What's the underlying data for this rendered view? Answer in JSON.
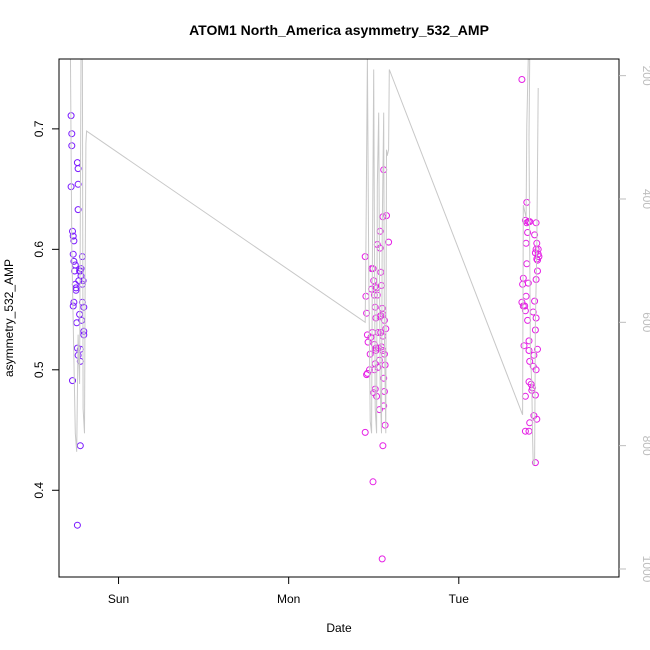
{
  "chart_data": {
    "type": "scatter",
    "title": "ATOM1 North_America asymmetry_532_AMP",
    "xlabel": "Date",
    "ylabel": "asymmetry_532_AMP",
    "x_ticks": [
      {
        "label": "Sun",
        "value": 24
      },
      {
        "label": "Mon",
        "value": 48
      },
      {
        "label": "Tue",
        "value": 72
      }
    ],
    "xlim": [
      15.6,
      94.6
    ],
    "ylim": [
      0.328,
      0.758
    ],
    "y_ticks": [
      0.4,
      0.5,
      0.6,
      0.7
    ],
    "y2_ticks": [
      200,
      400,
      600,
      800,
      1000
    ],
    "y2lim": [
      1013,
      173
    ],
    "grid": false,
    "colors": {
      "points_early": "#7a19ff",
      "points_late": "#e51fe5",
      "line": "#c8c8c8",
      "right_axis": "#bdbdbd"
    },
    "series": [
      {
        "name": "",
        "kind": "points",
        "points": [
          [
            17.3,
            0.711
          ],
          [
            17.4,
            0.696
          ],
          [
            17.4,
            0.686
          ],
          [
            17.3,
            0.652
          ],
          [
            17.5,
            0.615
          ],
          [
            17.6,
            0.611
          ],
          [
            17.7,
            0.607
          ],
          [
            17.6,
            0.596
          ],
          [
            17.7,
            0.59
          ],
          [
            17.9,
            0.587
          ],
          [
            17.8,
            0.582
          ],
          [
            17.9,
            0.571
          ],
          [
            18.0,
            0.568
          ],
          [
            18.0,
            0.566
          ],
          [
            17.7,
            0.556
          ],
          [
            17.6,
            0.553
          ],
          [
            17.5,
            0.491
          ],
          [
            18.2,
            0.672
          ],
          [
            18.3,
            0.667
          ],
          [
            18.3,
            0.654
          ],
          [
            18.3,
            0.633
          ],
          [
            18.9,
            0.594
          ],
          [
            18.6,
            0.582
          ],
          [
            18.7,
            0.584
          ],
          [
            18.5,
            0.582
          ],
          [
            18.4,
            0.574
          ],
          [
            18.7,
            0.578
          ],
          [
            18.9,
            0.571
          ],
          [
            19.0,
            0.574
          ],
          [
            18.9,
            0.556
          ],
          [
            19.1,
            0.552
          ],
          [
            18.5,
            0.546
          ],
          [
            18.8,
            0.541
          ],
          [
            18.1,
            0.539
          ],
          [
            19.1,
            0.532
          ],
          [
            19.1,
            0.529
          ],
          [
            18.2,
            0.518
          ],
          [
            18.6,
            0.517
          ],
          [
            18.3,
            0.512
          ],
          [
            18.6,
            0.507
          ],
          [
            18.6,
            0.437
          ],
          [
            18.2,
            0.371
          ],
          [
            58.8,
            0.594
          ],
          [
            58.9,
            0.561
          ],
          [
            59.0,
            0.547
          ],
          [
            59.1,
            0.529
          ],
          [
            59.2,
            0.523
          ],
          [
            59.0,
            0.496
          ],
          [
            59.1,
            0.497
          ],
          [
            58.8,
            0.448
          ],
          [
            59.7,
            0.584
          ],
          [
            59.9,
            0.584
          ],
          [
            60.0,
            0.574
          ],
          [
            60.2,
            0.569
          ],
          [
            60.4,
            0.568
          ],
          [
            59.7,
            0.567
          ],
          [
            60.1,
            0.562
          ],
          [
            60.5,
            0.562
          ],
          [
            60.2,
            0.552
          ],
          [
            60.3,
            0.543
          ],
          [
            59.6,
            0.527
          ],
          [
            59.8,
            0.531
          ],
          [
            60.1,
            0.521
          ],
          [
            60.3,
            0.518
          ],
          [
            60.3,
            0.516
          ],
          [
            59.5,
            0.513
          ],
          [
            60.2,
            0.505
          ],
          [
            60.1,
            0.5
          ],
          [
            59.4,
            0.5
          ],
          [
            60.6,
            0.502
          ],
          [
            60.2,
            0.484
          ],
          [
            60.0,
            0.481
          ],
          [
            60.4,
            0.478
          ],
          [
            60.8,
            0.467
          ],
          [
            59.9,
            0.407
          ],
          [
            60.5,
            0.604
          ],
          [
            60.9,
            0.601
          ],
          [
            60.9,
            0.615
          ],
          [
            61.3,
            0.627
          ],
          [
            61.4,
            0.666
          ],
          [
            61.8,
            0.628
          ],
          [
            62.1,
            0.606
          ],
          [
            61.0,
            0.581
          ],
          [
            61.1,
            0.57
          ],
          [
            61.2,
            0.551
          ],
          [
            61.5,
            0.541
          ],
          [
            61.7,
            0.534
          ],
          [
            61.3,
            0.546
          ],
          [
            61.0,
            0.545
          ],
          [
            60.6,
            0.531
          ],
          [
            60.9,
            0.544
          ],
          [
            61.0,
            0.531
          ],
          [
            61.1,
            0.519
          ],
          [
            61.3,
            0.516
          ],
          [
            60.7,
            0.518
          ],
          [
            61.3,
            0.528
          ],
          [
            61.5,
            0.513
          ],
          [
            61.6,
            0.504
          ],
          [
            60.8,
            0.508
          ],
          [
            61.4,
            0.493
          ],
          [
            61.5,
            0.482
          ],
          [
            61.4,
            0.47
          ],
          [
            61.6,
            0.454
          ],
          [
            61.3,
            0.437
          ],
          [
            61.2,
            0.343
          ],
          [
            80.9,
            0.741
          ],
          [
            81.1,
            0.576
          ],
          [
            81.0,
            0.571
          ],
          [
            80.9,
            0.556
          ],
          [
            81.1,
            0.553
          ],
          [
            81.3,
            0.553
          ],
          [
            81.4,
            0.549
          ],
          [
            81.6,
            0.639
          ],
          [
            81.4,
            0.624
          ],
          [
            81.6,
            0.622
          ],
          [
            81.8,
            0.623
          ],
          [
            82.0,
            0.623
          ],
          [
            81.7,
            0.614
          ],
          [
            81.5,
            0.605
          ],
          [
            81.6,
            0.588
          ],
          [
            81.8,
            0.572
          ],
          [
            81.5,
            0.561
          ],
          [
            81.7,
            0.541
          ],
          [
            81.2,
            0.52
          ],
          [
            81.9,
            0.524
          ],
          [
            81.9,
            0.516
          ],
          [
            82.0,
            0.507
          ],
          [
            81.9,
            0.49
          ],
          [
            82.2,
            0.488
          ],
          [
            82.4,
            0.485
          ],
          [
            82.3,
            0.483
          ],
          [
            81.4,
            0.478
          ],
          [
            82.0,
            0.456
          ],
          [
            81.4,
            0.449
          ],
          [
            81.9,
            0.449
          ],
          [
            82.7,
            0.612
          ],
          [
            82.9,
            0.622
          ],
          [
            83.0,
            0.605
          ],
          [
            82.9,
            0.6
          ],
          [
            82.8,
            0.597
          ],
          [
            83.0,
            0.592
          ],
          [
            83.2,
            0.6
          ],
          [
            83.2,
            0.596
          ],
          [
            83.1,
            0.591
          ],
          [
            83.3,
            0.594
          ],
          [
            83.1,
            0.582
          ],
          [
            82.9,
            0.575
          ],
          [
            82.7,
            0.557
          ],
          [
            82.5,
            0.548
          ],
          [
            82.9,
            0.543
          ],
          [
            82.8,
            0.533
          ],
          [
            83.1,
            0.517
          ],
          [
            82.6,
            0.512
          ],
          [
            82.5,
            0.503
          ],
          [
            82.9,
            0.5
          ],
          [
            82.8,
            0.479
          ],
          [
            82.6,
            0.462
          ],
          [
            83.0,
            0.459
          ],
          [
            82.8,
            0.423
          ]
        ]
      },
      {
        "name": "",
        "kind": "line",
        "axis": "right",
        "points": [
          [
            17.2,
            135
          ],
          [
            17.4,
            480
          ],
          [
            17.6,
            600
          ],
          [
            17.9,
            780
          ],
          [
            18.1,
            810
          ],
          [
            18.3,
            620
          ],
          [
            18.5,
            700
          ],
          [
            18.7,
            170
          ],
          [
            18.9,
            175
          ],
          [
            19.0,
            740
          ],
          [
            19.2,
            780
          ],
          [
            19.3,
            510
          ],
          [
            19.4,
            310
          ],
          [
            19.5,
            290
          ],
          [
            58.8,
            600
          ],
          [
            58.9,
            480
          ],
          [
            59.1,
            170
          ],
          [
            59.3,
            530
          ],
          [
            59.5,
            760
          ],
          [
            59.7,
            780
          ],
          [
            59.8,
            520
          ],
          [
            60.0,
            190
          ],
          [
            60.2,
            740
          ],
          [
            60.4,
            780
          ],
          [
            60.5,
            380
          ],
          [
            60.7,
            260
          ],
          [
            60.9,
            700
          ],
          [
            61.1,
            780
          ],
          [
            61.2,
            450
          ],
          [
            61.4,
            260
          ],
          [
            61.5,
            620
          ],
          [
            61.7,
            780
          ],
          [
            61.8,
            320
          ],
          [
            61.9,
            330
          ],
          [
            62.1,
            320
          ],
          [
            62.2,
            190
          ],
          [
            81.0,
            750
          ],
          [
            81.1,
            410
          ],
          [
            81.3,
            420
          ],
          [
            81.5,
            430
          ],
          [
            81.6,
            280
          ],
          [
            81.8,
            170
          ],
          [
            82.0,
            175
          ],
          [
            81.9,
            300
          ],
          [
            82.1,
            650
          ],
          [
            82.3,
            700
          ],
          [
            82.4,
            780
          ],
          [
            82.5,
            830
          ],
          [
            82.7,
            830
          ],
          [
            82.8,
            600
          ],
          [
            83.0,
            480
          ],
          [
            83.2,
            220
          ]
        ]
      }
    ]
  }
}
